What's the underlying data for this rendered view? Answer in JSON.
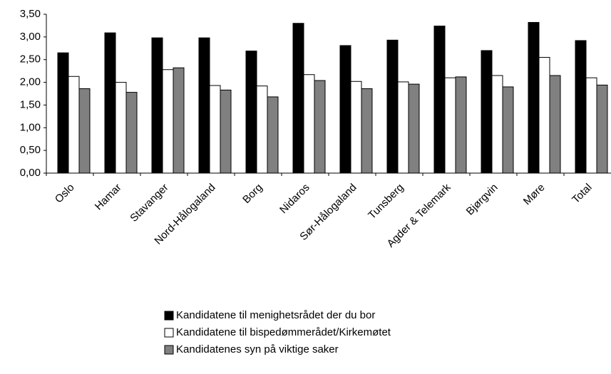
{
  "chart_data": {
    "type": "bar",
    "categories": [
      "Oslo",
      "Hamar",
      "Stavanger",
      "Nord-Hålogaland",
      "Borg",
      "Nidaros",
      "Sør-Hålogaland",
      "Tunsberg",
      "Agder & Telemark",
      "Bjørgvin",
      "Møre",
      "Total"
    ],
    "series": [
      {
        "name": "Kandidatene til menighetsrådet der du bor",
        "color": "#000000",
        "values": [
          2.65,
          3.09,
          2.98,
          2.98,
          2.69,
          3.3,
          2.81,
          2.93,
          3.24,
          2.7,
          3.32,
          2.92
        ]
      },
      {
        "name": "Kandidatene til bispedømmerådet/Kirkemøtet",
        "color": "#ffffff",
        "values": [
          2.13,
          2.0,
          2.28,
          1.93,
          1.92,
          2.17,
          2.02,
          2.01,
          2.1,
          2.15,
          2.55,
          2.1
        ]
      },
      {
        "name": "Kandidatenes syn på viktige saker",
        "color": "#808080",
        "values": [
          1.86,
          1.78,
          2.32,
          1.83,
          1.68,
          2.04,
          1.86,
          1.96,
          2.12,
          1.9,
          2.15,
          1.94
        ]
      }
    ],
    "ylim": [
      0,
      3.5
    ],
    "yticks": [
      {
        "value": 0,
        "label": "0,00"
      },
      {
        "value": 0.5,
        "label": "0,50"
      },
      {
        "value": 1,
        "label": "1,00"
      },
      {
        "value": 1.5,
        "label": "1,50"
      },
      {
        "value": 2,
        "label": "2,00"
      },
      {
        "value": 2.5,
        "label": "2,50"
      },
      {
        "value": 3,
        "label": "3,00"
      },
      {
        "value": 3.5,
        "label": "3,50"
      }
    ],
    "grid": false,
    "legend": "bottom"
  }
}
